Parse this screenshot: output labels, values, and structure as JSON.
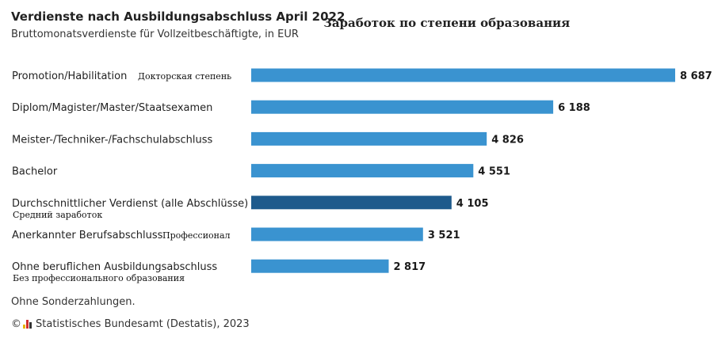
{
  "header": {
    "title": "Verdienste nach Ausbildungsabschluss April 2022",
    "subtitle": "Bruttomonatsverdienste für Vollzeitbeschäftigte, in EUR",
    "title_ru": "Заработок по степени образования"
  },
  "footer": {
    "note": "Ohne Sonderzahlungen.",
    "copyright_symbol": "©",
    "source": "Statistisches Bundesamt (Destatis), 2023"
  },
  "colors": {
    "bar": "#3a93d0",
    "bar_highlight": "#1e5a8c"
  },
  "chart_data": {
    "type": "bar",
    "orientation": "horizontal",
    "title": "Verdienste nach Ausbildungsabschluss April 2022",
    "subtitle": "Bruttomonatsverdienste für Vollzeitbeschäftigte, in EUR",
    "categories": [
      "Promotion/Habilitation",
      "Diplom/Magister/Master/Staatsexamen",
      "Meister-/Techniker-/Fachschulabschluss",
      "Bachelor",
      "Durchschnittlicher Verdienst (alle Abschlüsse)",
      "Anerkannter Berufsabschluss",
      "Ohne beruflichen Ausbildungsabschluss"
    ],
    "annotations_ru": [
      "Докторская степень",
      "",
      "",
      "",
      "Средний заработок",
      "Профессионал",
      "Без профессионального образования"
    ],
    "values": [
      8687,
      6188,
      4826,
      4551,
      4105,
      3521,
      2817
    ],
    "value_labels": [
      "8 687",
      "6 188",
      "4 826",
      "4 551",
      "4 105",
      "3 521",
      "2 817"
    ],
    "highlight_index": 4,
    "xlim": [
      0,
      8687
    ],
    "grid": false,
    "legend": "none"
  }
}
